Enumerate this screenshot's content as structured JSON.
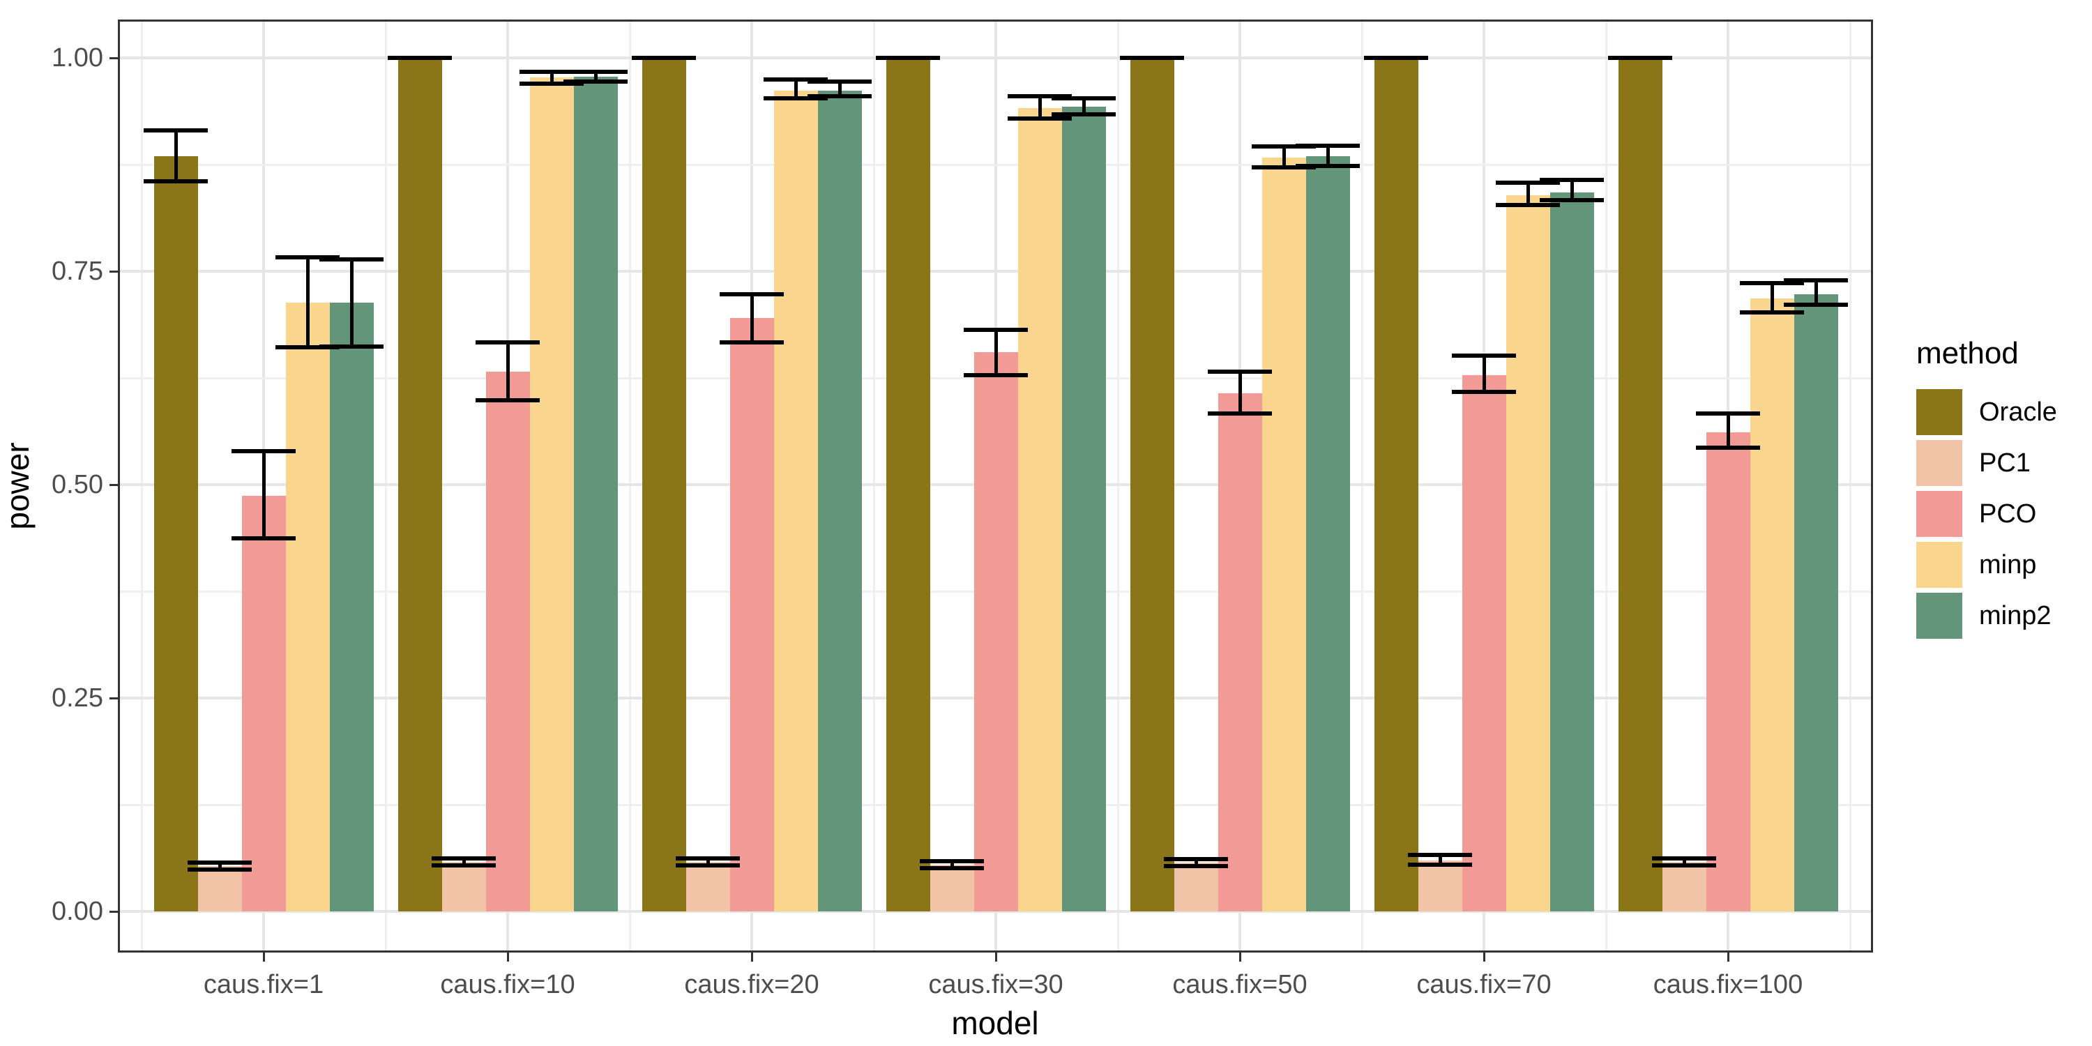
{
  "figure": {
    "y_axis": {
      "title": "power",
      "ticks": [
        "1.00",
        "0.75",
        "0.50",
        "0.25",
        "0.00"
      ],
      "tick_values": [
        1.0,
        0.75,
        0.5,
        0.25,
        0.0
      ],
      "minor_values": [
        0.875,
        0.625,
        0.375,
        0.125
      ]
    },
    "x_axis": {
      "title": "model"
    },
    "legend": {
      "title": "method",
      "position": "right"
    },
    "colors": {
      "panel_background": "#FFFFFF",
      "panel_border": "#333333",
      "grid_major": "#E6E6E6",
      "grid_minor": "#EFEFEF",
      "error_bar": "#000000",
      "tick_label": "#4D4D4D"
    }
  },
  "chart_data": {
    "type": "bar",
    "title": "",
    "xlabel": "model",
    "ylabel": "power",
    "ylim": [
      0,
      1
    ],
    "grid": "on",
    "legend_position": "right",
    "error_bars": true,
    "categories": [
      "caus.fix=1",
      "caus.fix=10",
      "caus.fix=20",
      "caus.fix=30",
      "caus.fix=50",
      "caus.fix=70",
      "caus.fix=100"
    ],
    "series": [
      {
        "name": "Oracle",
        "color": "#8A7618",
        "values": [
          0.885,
          1.0,
          1.0,
          1.0,
          1.0,
          1.0,
          1.0
        ],
        "ci_low": [
          0.855,
          1.0,
          1.0,
          1.0,
          1.0,
          1.0,
          1.0
        ],
        "ci_high": [
          0.915,
          1.0,
          1.0,
          1.0,
          1.0,
          1.0,
          1.0
        ]
      },
      {
        "name": "PC1",
        "color": "#F2C4A7",
        "values": [
          0.053,
          0.058,
          0.058,
          0.055,
          0.057,
          0.06,
          0.058
        ],
        "ci_low": [
          0.049,
          0.054,
          0.054,
          0.051,
          0.053,
          0.055,
          0.054
        ],
        "ci_high": [
          0.057,
          0.062,
          0.062,
          0.059,
          0.061,
          0.066,
          0.062
        ]
      },
      {
        "name": "PCO",
        "color": "#F29A95",
        "values": [
          0.487,
          0.632,
          0.695,
          0.655,
          0.607,
          0.628,
          0.561
        ],
        "ci_low": [
          0.437,
          0.599,
          0.667,
          0.628,
          0.583,
          0.609,
          0.543
        ],
        "ci_high": [
          0.539,
          0.667,
          0.723,
          0.681,
          0.632,
          0.651,
          0.583
        ]
      },
      {
        "name": "minp",
        "color": "#FAD58D",
        "values": [
          0.713,
          0.977,
          0.962,
          0.941,
          0.883,
          0.839,
          0.718
        ],
        "ci_low": [
          0.661,
          0.97,
          0.953,
          0.929,
          0.872,
          0.828,
          0.702
        ],
        "ci_high": [
          0.766,
          0.984,
          0.975,
          0.955,
          0.896,
          0.854,
          0.736
        ]
      },
      {
        "name": "minp2",
        "color": "#63957B",
        "values": [
          0.713,
          0.978,
          0.962,
          0.943,
          0.885,
          0.842,
          0.723
        ],
        "ci_low": [
          0.662,
          0.972,
          0.955,
          0.934,
          0.873,
          0.833,
          0.711
        ],
        "ci_high": [
          0.764,
          0.984,
          0.972,
          0.953,
          0.897,
          0.857,
          0.739
        ]
      }
    ]
  }
}
